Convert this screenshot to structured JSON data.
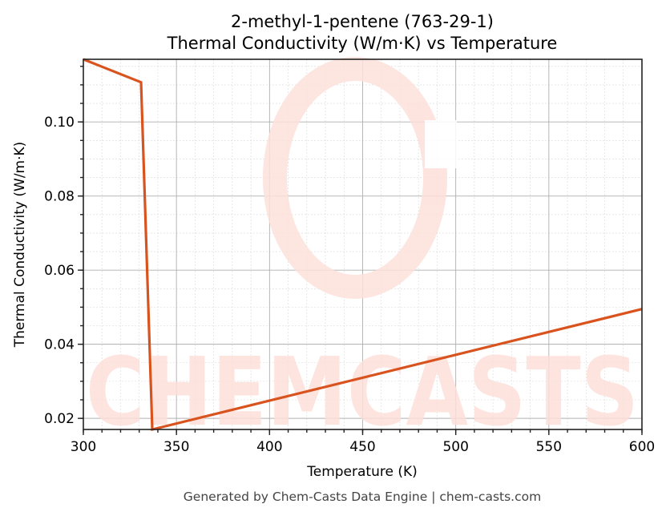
{
  "chart_data": {
    "type": "line",
    "title": "2-methyl-1-pentene (763-29-1)",
    "subtitle": "Thermal Conductivity (W/m·K) vs Temperature",
    "xlabel": "Temperature (K)",
    "ylabel": "Thermal Conductivity (W/m·K)",
    "xlim": [
      300,
      600
    ],
    "ylim": [
      0.017,
      0.1169
    ],
    "x_ticks": [
      300,
      350,
      400,
      450,
      500,
      550,
      600
    ],
    "x_tick_labels": [
      "300",
      "350",
      "400",
      "450",
      "500",
      "550",
      "600"
    ],
    "y_ticks": [
      0.02,
      0.04,
      0.06,
      0.08,
      0.1
    ],
    "y_tick_labels": [
      "0.02",
      "0.04",
      "0.06",
      "0.08",
      "0.10"
    ],
    "x_minor_step": 10,
    "y_minor_step": 0.005,
    "grid": true,
    "legend": null,
    "series": [
      {
        "name": "Thermal Conductivity",
        "color": "#d9531e",
        "x": [
          300,
          331,
          337,
          600
        ],
        "y": [
          0.1169,
          0.1107,
          0.017,
          0.0495
        ]
      }
    ]
  },
  "watermark": {
    "text": "CHEMCASTS",
    "color": "#fde0da"
  },
  "footer": "Generated by Chem-Casts Data Engine | chem-casts.com"
}
